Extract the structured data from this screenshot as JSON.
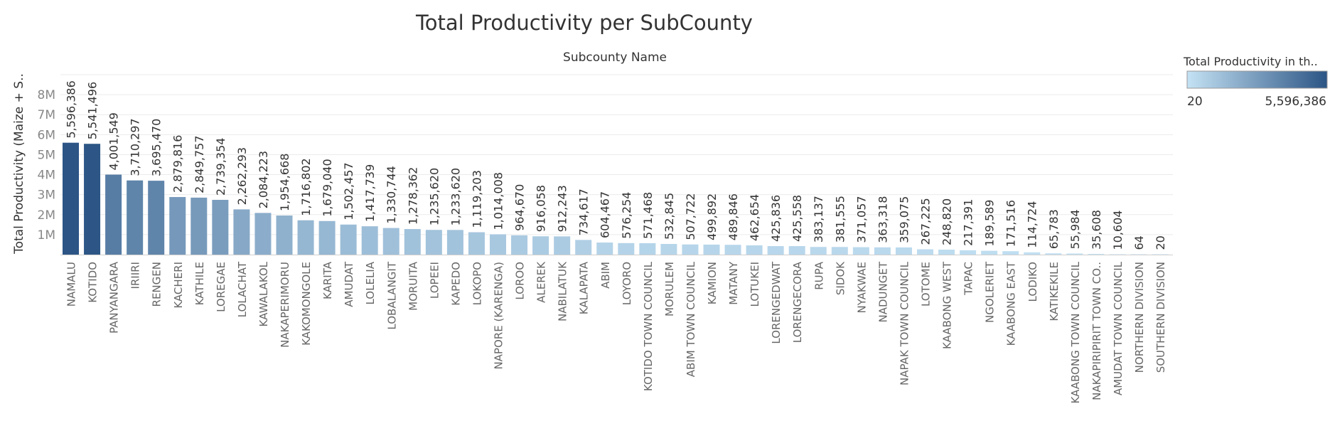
{
  "chart_data": {
    "type": "bar",
    "title": "Total Productivity per SubCounty",
    "subtitle": "Subcounty Name",
    "ylabel": "Total Productivity  (Maize + S..",
    "xlabel": "",
    "ylim": [
      0,
      9000000
    ],
    "yticks": [
      1000000,
      2000000,
      3000000,
      4000000,
      5000000,
      6000000,
      7000000,
      8000000
    ],
    "ytick_labels": [
      "1M",
      "2M",
      "3M",
      "4M",
      "5M",
      "6M",
      "7M",
      "8M"
    ],
    "grid": true,
    "legend": {
      "title": "Total Productivity in th..",
      "min_label": "20",
      "max_label": "5,596,386",
      "placement": "top-right",
      "color_low": "#c4e2f4",
      "color_high": "#2c5585"
    },
    "categories": [
      "NAMALU",
      "KOTIDO",
      "PANYANGARA",
      "IRIIRI",
      "RENGEN",
      "KACHERI",
      "KATHILE",
      "LOREGAE",
      "LOLACHAT",
      "KAWALAKOL",
      "NAKAPERIMORU",
      "KAKOMONGOLE",
      "KARITA",
      "AMUDAT",
      "LOLELIA",
      "LOBALANGIT",
      "MORUITA",
      "LOPEEI",
      "KAPEDO",
      "LOKOPO",
      "NAPORE (KARENGA)",
      "LOROO",
      "ALEREK",
      "NABILATUK",
      "KALAPATA",
      "ABIM",
      "LOYORO",
      "KOTIDO TOWN COUNCIL",
      "MORULEM",
      "ABIM TOWN COUNCIL",
      "KAMION",
      "MATANY",
      "LOTUKEI",
      "LORENGEDWAT",
      "LORENGECORA",
      "RUPA",
      "SIDOK",
      "NYAKWAE",
      "NADUNGET",
      "NAPAK TOWN COUNCIL",
      "LOTOME",
      "KAABONG WEST",
      "TAPAC",
      "NGOLERIET",
      "KAABONG  EAST",
      "LODIKO",
      "KATIKEKILE",
      "KAABONG TOWN COUNCIL",
      "NAKAPIRIPIRIT TOWN CO..",
      "AMUDAT TOWN COUNCIL",
      "NORTHERN DIVISION",
      "SOUTHERN DIVISION"
    ],
    "values": [
      5596386,
      5541496,
      4001549,
      3710297,
      3695470,
      2879816,
      2849757,
      2739354,
      2262293,
      2084223,
      1954668,
      1716802,
      1679040,
      1502457,
      1417739,
      1330744,
      1278362,
      1235620,
      1233620,
      1119203,
      1014008,
      964670,
      916058,
      912243,
      734617,
      604467,
      576254,
      571468,
      532845,
      507722,
      499892,
      489846,
      462654,
      425836,
      425558,
      383137,
      381555,
      371057,
      363318,
      359075,
      267225,
      248820,
      217391,
      189589,
      171516,
      114724,
      65783,
      55984,
      35608,
      10604,
      64,
      20
    ],
    "value_labels": [
      "5,596,386",
      "5,541,496",
      "4,001,549",
      "3,710,297",
      "3,695,470",
      "2,879,816",
      "2,849,757",
      "2,739,354",
      "2,262,293",
      "2,084,223",
      "1,954,668",
      "1,716,802",
      "1,679,040",
      "1,502,457",
      "1,417,739",
      "1,330,744",
      "1,278,362",
      "1,235,620",
      "1,233,620",
      "1,119,203",
      "1,014,008",
      "964,670",
      "916,058",
      "912,243",
      "734,617",
      "604,467",
      "576,254",
      "571,468",
      "532,845",
      "507,722",
      "499,892",
      "489,846",
      "462,654",
      "425,836",
      "425,558",
      "383,137",
      "381,555",
      "371,057",
      "363,318",
      "359,075",
      "267,225",
      "248,820",
      "217,391",
      "189,589",
      "171,516",
      "114,724",
      "65,783",
      "55,984",
      "35,608",
      "10,604",
      "64",
      "20"
    ]
  }
}
